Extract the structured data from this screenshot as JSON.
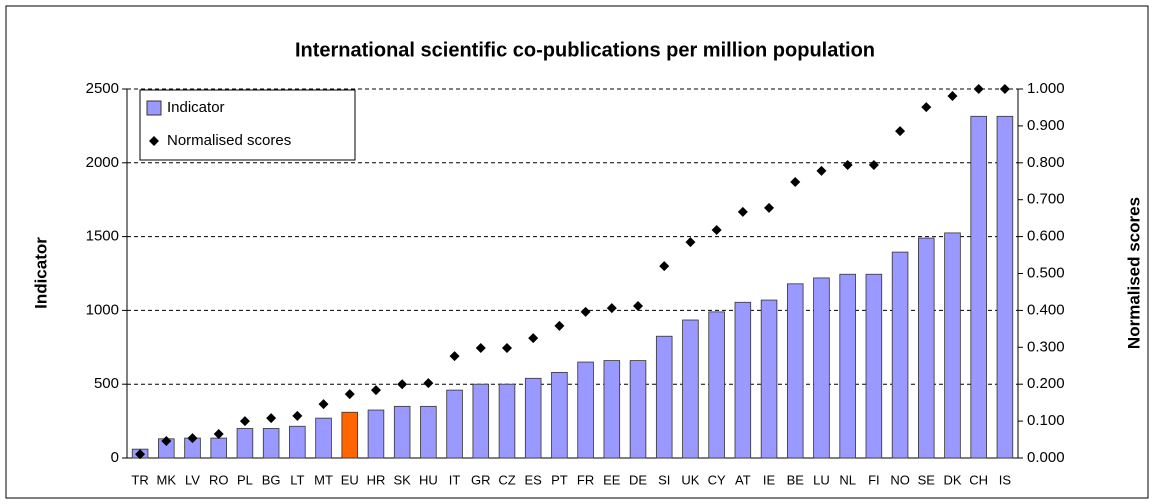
{
  "chart_data": {
    "type": "bar",
    "title": "International scientific co-publications per million population",
    "y_label": "Indicator",
    "y2_label": "Normalised scores",
    "categories": [
      "TR",
      "MK",
      "LV",
      "RO",
      "PL",
      "BG",
      "LT",
      "MT",
      "EU",
      "HR",
      "SK",
      "HU",
      "IT",
      "GR",
      "CZ",
      "ES",
      "PT",
      "FR",
      "EE",
      "DE",
      "SI",
      "UK",
      "CY",
      "AT",
      "IE",
      "BE",
      "LU",
      "NL",
      "FI",
      "NO",
      "SE",
      "DK",
      "CH",
      "IS"
    ],
    "series": [
      {
        "name": "Indicator",
        "color": "#9999ff",
        "colors": [
          "#9999ff",
          "#9999ff",
          "#9999ff",
          "#9999ff",
          "#9999ff",
          "#9999ff",
          "#9999ff",
          "#9999ff",
          "#ff6600",
          "#9999ff",
          "#9999ff",
          "#9999ff",
          "#9999ff",
          "#9999ff",
          "#9999ff",
          "#9999ff",
          "#9999ff",
          "#9999ff",
          "#9999ff",
          "#9999ff",
          "#9999ff",
          "#9999ff",
          "#9999ff",
          "#9999ff",
          "#9999ff",
          "#9999ff",
          "#9999ff",
          "#9999ff",
          "#9999ff",
          "#9999ff",
          "#9999ff",
          "#9999ff",
          "#9999ff",
          "#9999ff"
        ],
        "values": [
          60,
          130,
          135,
          135,
          200,
          200,
          215,
          270,
          310,
          325,
          350,
          350,
          460,
          500,
          500,
          540,
          580,
          650,
          660,
          660,
          825,
          935,
          990,
          1055,
          1070,
          1180,
          1220,
          1245,
          1245,
          1395,
          1490,
          1525,
          2315,
          2315
        ]
      },
      {
        "name": "Normalised scores",
        "color": "#000000",
        "axis": "y2",
        "marker": "diamond",
        "values": [
          0.01,
          0.046,
          0.054,
          0.065,
          0.1,
          0.108,
          0.114,
          0.146,
          0.173,
          0.184,
          0.2,
          0.203,
          0.276,
          0.298,
          0.298,
          0.325,
          0.358,
          0.396,
          0.406,
          0.412,
          0.52,
          0.585,
          0.618,
          0.667,
          0.678,
          0.748,
          0.778,
          0.794,
          0.794,
          0.886,
          0.951,
          0.981,
          1.0,
          1.0
        ]
      }
    ],
    "ylim": [
      0,
      2500
    ],
    "yticks": [
      0,
      500,
      1000,
      1500,
      2000,
      2500
    ],
    "y2lim": [
      0,
      1
    ],
    "y2ticks": [
      {
        "value": 0,
        "label": "0.000"
      },
      {
        "value": 0.1,
        "label": "0.100"
      },
      {
        "value": 0.2,
        "label": "0.200"
      },
      {
        "value": 0.3,
        "label": "0.300"
      },
      {
        "value": 0.4,
        "label": "0.400"
      },
      {
        "value": 0.5,
        "label": "0.500"
      },
      {
        "value": 0.6,
        "label": "0.600"
      },
      {
        "value": 0.7,
        "label": "0.700"
      },
      {
        "value": 0.8,
        "label": "0.800"
      },
      {
        "value": 0.9,
        "label": "0.900"
      },
      {
        "value": 1,
        "label": "1.000"
      }
    ],
    "grid": true,
    "legend": "top-left"
  }
}
